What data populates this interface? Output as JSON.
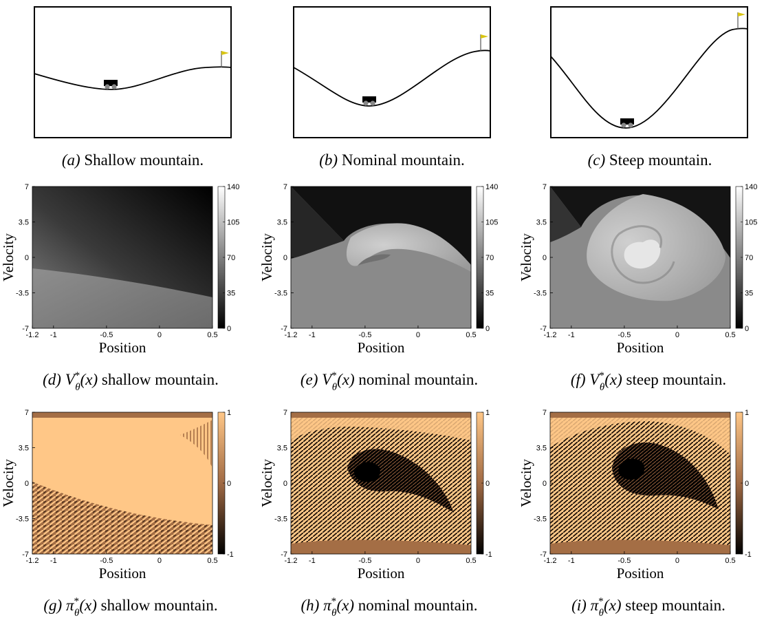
{
  "captions": {
    "a": {
      "letter": "(a)",
      "text": "Shallow mountain."
    },
    "b": {
      "letter": "(b)",
      "text": "Nominal mountain."
    },
    "c": {
      "letter": "(c)",
      "text": "Steep mountain."
    },
    "d": {
      "letter": "(d)",
      "sym": "V",
      "sup": "*",
      "sub": "θ",
      "arg": "(x)",
      "text": "shallow mountain."
    },
    "e": {
      "letter": "(e)",
      "sym": "V",
      "sup": "*",
      "sub": "θ",
      "arg": "(x)",
      "text": "nominal mountain."
    },
    "f": {
      "letter": "(f)",
      "sym": "V",
      "sup": "*",
      "sub": "θ",
      "arg": "(x)",
      "text": "steep mountain."
    },
    "g": {
      "letter": "(g)",
      "sym": "π",
      "sup": "*",
      "sub": "θ",
      "arg": "(x)",
      "text": "shallow mountain."
    },
    "h": {
      "letter": "(h)",
      "sym": "π",
      "sup": "*",
      "sub": "θ",
      "arg": "(x)",
      "text": "nominal mountain."
    },
    "i": {
      "letter": "(i)",
      "sym": "π",
      "sup": "*",
      "sub": "θ",
      "arg": "(x)",
      "text": "steep mountain."
    }
  },
  "chart_data": [
    {
      "type": "heatmap",
      "panel": "d",
      "xlabel": "Position",
      "ylabel": "Velocity",
      "xlim": [
        -1.2,
        0.5
      ],
      "ylim": [
        -7,
        7
      ],
      "xticks": [
        "-1.2",
        "-1",
        "-0.5",
        "0",
        "0.5"
      ],
      "yticks": [
        "7",
        "3.5",
        "0",
        "-3.5",
        "-7"
      ],
      "colorbar": {
        "colormap": "gray",
        "ticks": [
          "140",
          "105",
          "70",
          "35",
          "0"
        ],
        "range": [
          0,
          140
        ]
      }
    },
    {
      "type": "heatmap",
      "panel": "e",
      "xlabel": "Position",
      "ylabel": "Velocity",
      "xlim": [
        -1.2,
        0.5
      ],
      "ylim": [
        -7,
        7
      ],
      "xticks": [
        "-1.2",
        "-1",
        "-0.5",
        "0",
        "0.5"
      ],
      "yticks": [
        "7",
        "3.5",
        "0",
        "-3.5",
        "-7"
      ],
      "colorbar": {
        "colormap": "gray",
        "ticks": [
          "140",
          "105",
          "70",
          "35",
          "0"
        ],
        "range": [
          0,
          140
        ]
      }
    },
    {
      "type": "heatmap",
      "panel": "f",
      "xlabel": "Position",
      "ylabel": "Velocity",
      "xlim": [
        -1.2,
        0.5
      ],
      "ylim": [
        -7,
        7
      ],
      "xticks": [
        "-1.2",
        "-1",
        "-0.5",
        "0",
        "0.5"
      ],
      "yticks": [
        "7",
        "3.5",
        "0",
        "-3.5",
        "-7"
      ],
      "colorbar": {
        "colormap": "gray",
        "ticks": [
          "140",
          "105",
          "70",
          "35",
          "0"
        ],
        "range": [
          0,
          140
        ]
      }
    },
    {
      "type": "heatmap",
      "panel": "g",
      "xlabel": "Position",
      "ylabel": "Velocity",
      "xlim": [
        -1.2,
        0.5
      ],
      "ylim": [
        -7,
        7
      ],
      "xticks": [
        "-1.2",
        "-1",
        "-0.5",
        "0",
        "0.5"
      ],
      "yticks": [
        "7",
        "3.5",
        "0",
        "-3.5",
        "-7"
      ],
      "colorbar": {
        "colormap": "copper",
        "ticks": [
          "1",
          "0",
          "-1"
        ],
        "range": [
          -1,
          1
        ]
      }
    },
    {
      "type": "heatmap",
      "panel": "h",
      "xlabel": "Position",
      "ylabel": "Velocity",
      "xlim": [
        -1.2,
        0.5
      ],
      "ylim": [
        -7,
        7
      ],
      "xticks": [
        "-1.2",
        "-1",
        "-0.5",
        "0",
        "0.5"
      ],
      "yticks": [
        "7",
        "3.5",
        "0",
        "-3.5",
        "-7"
      ],
      "colorbar": {
        "colormap": "copper",
        "ticks": [
          "1",
          "0",
          "-1"
        ],
        "range": [
          -1,
          1
        ]
      }
    },
    {
      "type": "heatmap",
      "panel": "i",
      "xlabel": "Position",
      "ylabel": "Velocity",
      "xlim": [
        -1.2,
        0.5
      ],
      "ylim": [
        -7,
        7
      ],
      "xticks": [
        "-1.2",
        "-1",
        "-0.5",
        "0",
        "0.5"
      ],
      "yticks": [
        "7",
        "3.5",
        "0",
        "-3.5",
        "-7"
      ],
      "colorbar": {
        "colormap": "copper",
        "ticks": [
          "1",
          "0",
          "-1"
        ],
        "range": [
          -1,
          1
        ]
      }
    }
  ]
}
